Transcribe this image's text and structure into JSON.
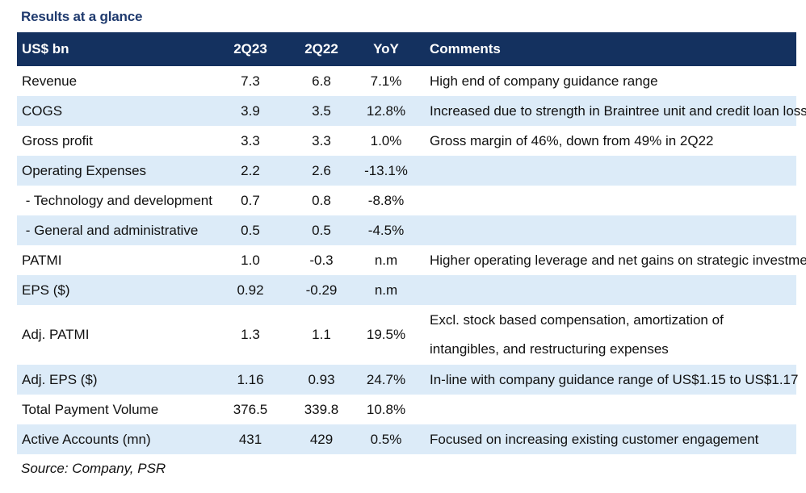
{
  "title": "Results at a glance",
  "table": {
    "headers": [
      "US$ bn",
      "2Q23",
      "2Q22",
      "YoY",
      "Comments"
    ],
    "rows": [
      {
        "label": "Revenue",
        "q23": "7.3",
        "q22": "6.8",
        "yoy": "7.1%",
        "comment": "High end of company guidance range"
      },
      {
        "label": "COGS",
        "q23": "3.9",
        "q22": "3.5",
        "yoy": "12.8%",
        "comment": "Increased due to strength in Braintree unit and credit loan losses"
      },
      {
        "label": "Gross profit",
        "q23": "3.3",
        "q22": "3.3",
        "yoy": "1.0%",
        "comment": "Gross margin of 46%, down from 49% in 2Q22"
      },
      {
        "label": "Operating Expenses",
        "q23": "2.2",
        "q22": "2.6",
        "yoy": "-13.1%",
        "comment": ""
      },
      {
        "label": " - Technology and development",
        "q23": "0.7",
        "q22": "0.8",
        "yoy": "-8.8%",
        "comment": ""
      },
      {
        "label": " - General and administrative",
        "q23": "0.5",
        "q22": "0.5",
        "yoy": "-4.5%",
        "comment": ""
      },
      {
        "label": "PATMI",
        "q23": "1.0",
        "q22": "-0.3",
        "yoy": "n.m",
        "comment": "Higher operating leverage and net gains on strategic investments"
      },
      {
        "label": "EPS ($)",
        "q23": "0.92",
        "q22": "-0.29",
        "yoy": "n.m",
        "comment": ""
      },
      {
        "label": "Adj. PATMI",
        "q23": "1.3",
        "q22": "1.1",
        "yoy": "19.5%",
        "comment": "Excl. stock based compensation, amortization of intangibles, and restructuring expenses"
      },
      {
        "label": "Adj. EPS ($)",
        "q23": "1.16",
        "q22": "0.93",
        "yoy": "24.7%",
        "comment": "In-line with company guidance range of US$1.15 to US$1.17"
      },
      {
        "label": "Total Payment Volume",
        "q23": "376.5",
        "q22": "339.8",
        "yoy": "10.8%",
        "comment": ""
      },
      {
        "label": "Active Accounts (mn)",
        "q23": "431",
        "q22": "429",
        "yoy": "0.5%",
        "comment": "Focused on increasing existing customer engagement"
      }
    ]
  },
  "source": "Source: Company, PSR",
  "colors": {
    "header_bg": "#14315f",
    "alt_row_bg": "#dcebf8",
    "title_color": "#1f3a6e"
  }
}
